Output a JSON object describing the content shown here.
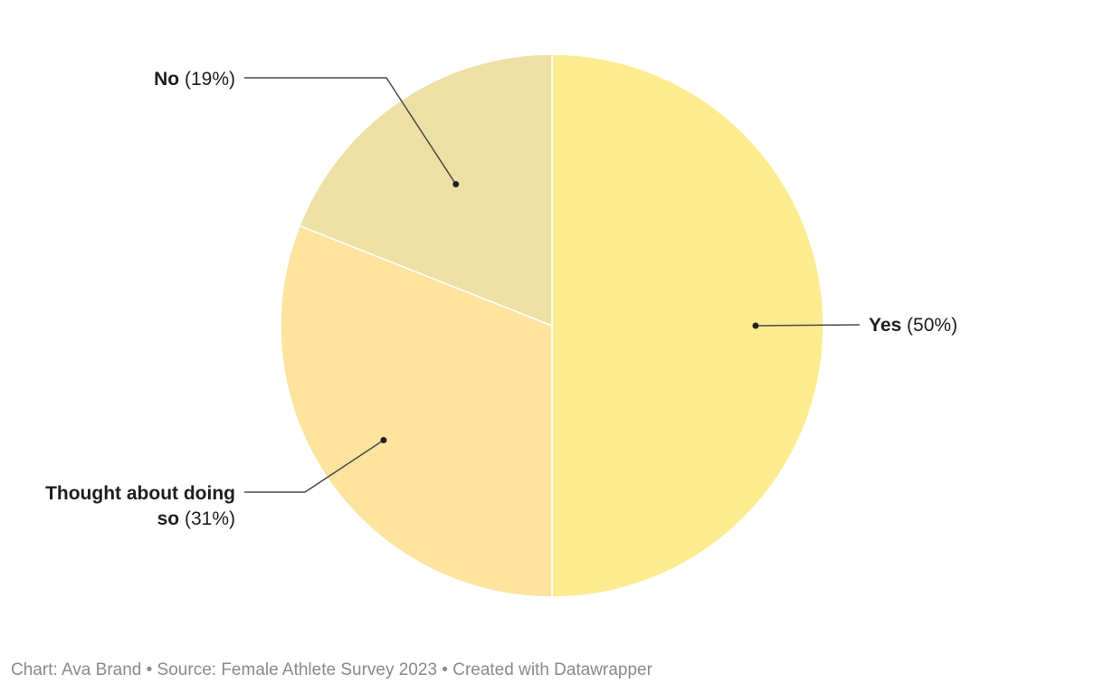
{
  "chart_data": {
    "type": "pie",
    "slices": [
      {
        "label": "Yes",
        "value": 50,
        "display": "(50%)",
        "color": "#fdec8f"
      },
      {
        "label": "Thought about doing so",
        "label_lines": [
          "Thought about doing",
          "so"
        ],
        "value": 31,
        "display": "(31%)",
        "color": "#fde39e"
      },
      {
        "label": "No",
        "value": 19,
        "display": "(19%)",
        "color": "#ede0a4"
      }
    ],
    "start_angle": "12 o'clock",
    "direction": "clockwise",
    "legend": "none (direct labels)"
  },
  "footer": {
    "text": "Chart: Ava Brand • Source: Female Athlete Survey 2023 • Created with Datawrapper"
  }
}
